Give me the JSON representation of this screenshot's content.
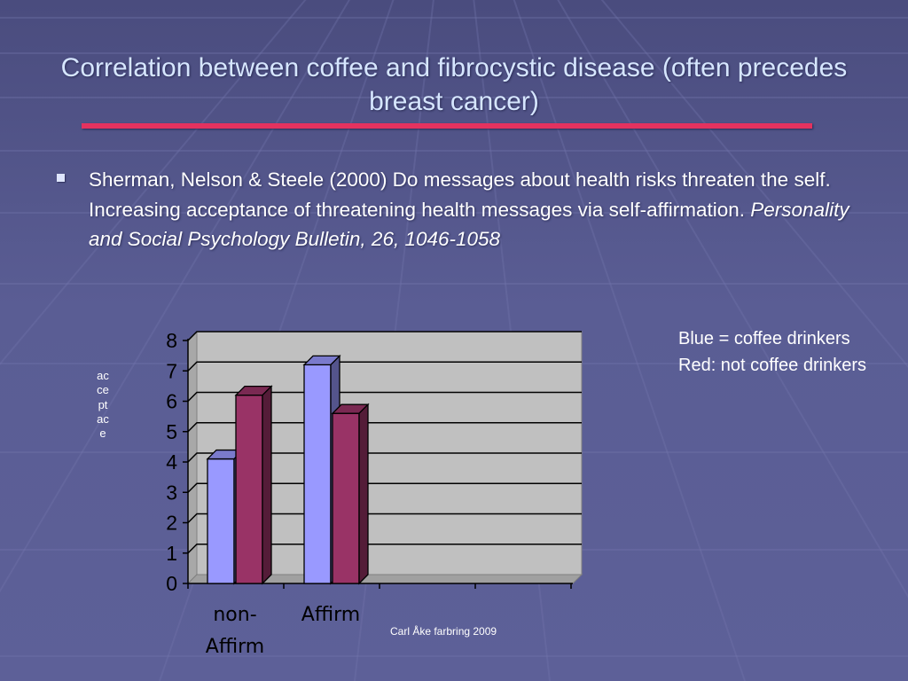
{
  "slide": {
    "title": "Correlation between coffee and fibrocystic disease (often precedes breast cancer)",
    "bullet": {
      "text": "Sherman, Nelson & Steele (2000) Do messages about health risks threaten the self. Increasing acceptance of threatening health messages via self-affirmation.",
      "citation": "Personality and Social Psychology Bulletin, 26, 1046-1058"
    },
    "legend_note": [
      "Blue = coffee drinkers",
      "Red: not coffee drinkers"
    ],
    "footer": "Carl Åke farbring 2009"
  },
  "colors": {
    "title": "#d6e6ff",
    "rule": "#e4325f",
    "series_blue": "#9999ff",
    "series_red": "#993366",
    "plot_bg": "#c0c0c0"
  },
  "chart_data": {
    "type": "bar",
    "categories": [
      "non-Affirm",
      "Affirm"
    ],
    "series": [
      {
        "values": [
          4.1,
          7.2
        ],
        "color": "#9999ff"
      },
      {
        "values": [
          6.2,
          5.6
        ],
        "color": "#993366"
      }
    ],
    "ylabel": "acceptace",
    "ylim": [
      0,
      8
    ],
    "yticks": [
      "0",
      "1",
      "2",
      "3",
      "4",
      "5",
      "6",
      "7",
      "8"
    ],
    "grid": true,
    "legend": "none"
  }
}
